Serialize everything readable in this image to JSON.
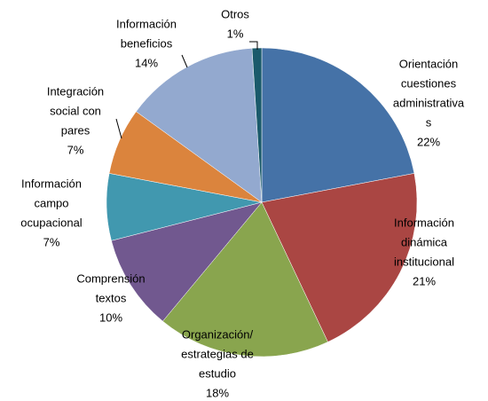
{
  "chart_data": {
    "type": "pie",
    "categories": [
      [
        "Orientación",
        "cuestiones",
        "administrativa",
        "s"
      ],
      [
        "Información",
        "dinámica",
        "institucional"
      ],
      [
        "Organización/",
        "estrategias de",
        "estudio"
      ],
      [
        "Comprensión",
        "textos"
      ],
      [
        "Información",
        "campo",
        "ocupacional"
      ],
      [
        "Integración",
        "social con",
        "pares"
      ],
      [
        "Información",
        "beneficios"
      ],
      [
        "Otros"
      ]
    ],
    "values": [
      22,
      21,
      18,
      10,
      7,
      7,
      14,
      1
    ],
    "value_labels": [
      "22%",
      "21%",
      "18%",
      "10%",
      "7%",
      "7%",
      "14%",
      "1%"
    ],
    "colors": [
      "#4572a7",
      "#aa4643",
      "#89a54e",
      "#71588f",
      "#4198af",
      "#db843d",
      "#93a9cf",
      "#1a5a6b"
    ]
  }
}
